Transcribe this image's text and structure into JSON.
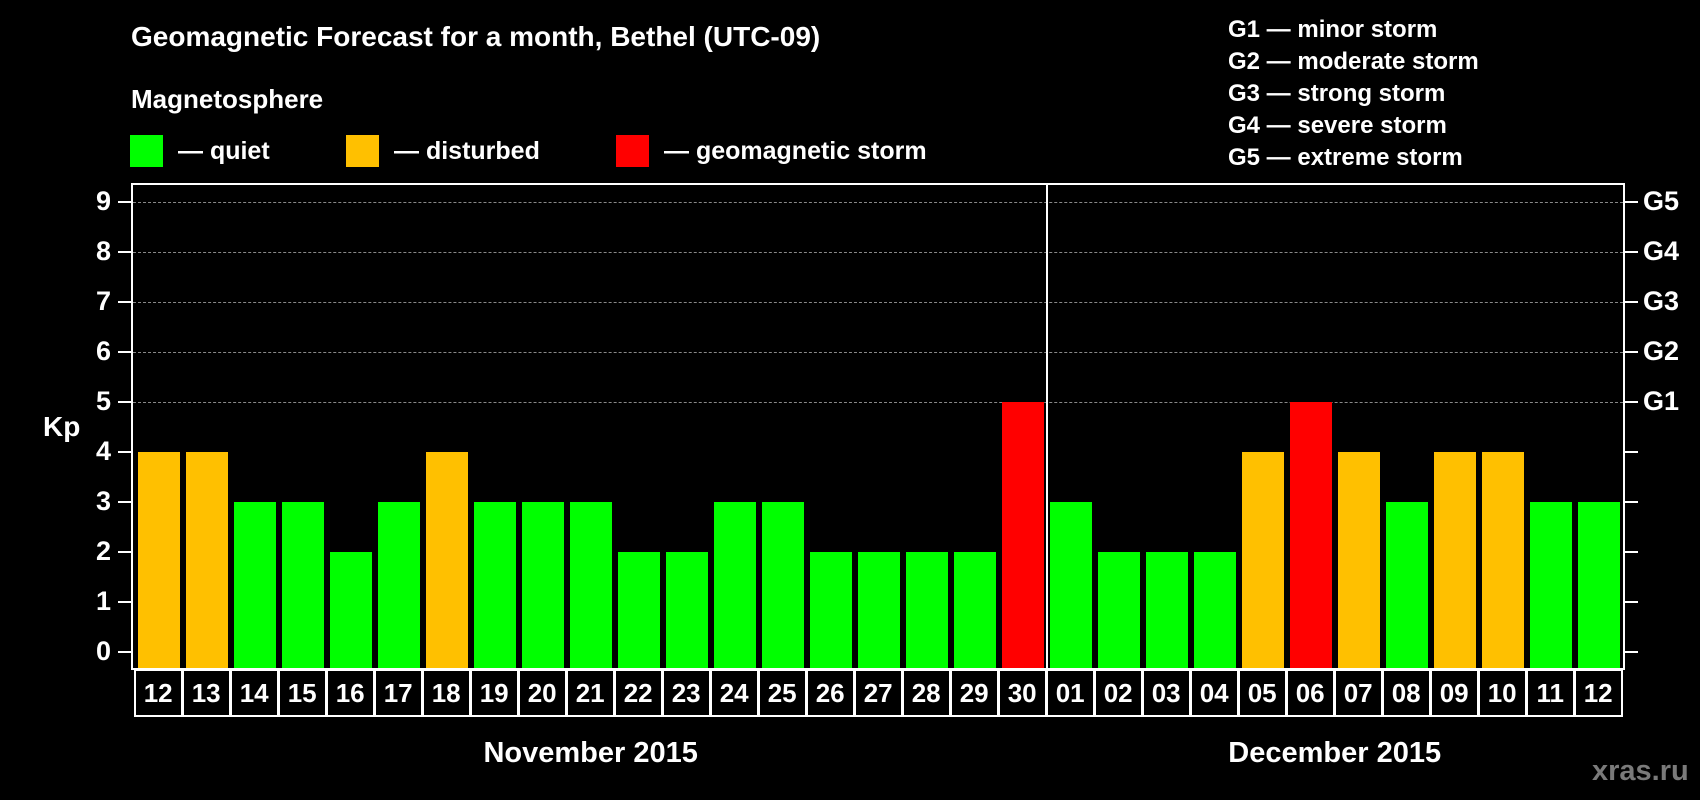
{
  "header": {
    "title": "Geomagnetic Forecast for a month, Bethel (UTC-09)",
    "subtitle": "Magnetosphere"
  },
  "legend": [
    {
      "label": "— quiet",
      "color": "#00FF00"
    },
    {
      "label": "— disturbed",
      "color": "#FFC000"
    },
    {
      "label": "— geomagnetic storm",
      "color": "#FF0000"
    }
  ],
  "storm_scale": [
    "G1 — minor storm",
    "G2 — moderate storm",
    "G3 — strong storm",
    "G4 — severe storm",
    "G5 — extreme storm"
  ],
  "watermark": "xras.ru",
  "chart_data": {
    "type": "bar",
    "title": "Geomagnetic Forecast for a month, Bethel (UTC-09)",
    "subtitle": "Magnetosphere",
    "ylabel": "Kp",
    "xlabel": "",
    "ylim": [
      0,
      9
    ],
    "yticks": [
      0,
      1,
      2,
      3,
      4,
      5,
      6,
      7,
      8,
      9
    ],
    "right_axis_labels": [
      {
        "value": 5,
        "label": "G1"
      },
      {
        "value": 6,
        "label": "G2"
      },
      {
        "value": 7,
        "label": "G3"
      },
      {
        "value": 8,
        "label": "G4"
      },
      {
        "value": 9,
        "label": "G5"
      }
    ],
    "grid": "horizontal dashed at 5-9",
    "months": [
      {
        "label": "November 2015",
        "start_index": 0,
        "end_index": 18
      },
      {
        "label": "December 2015",
        "start_index": 19,
        "end_index": 30
      }
    ],
    "categories": [
      "12",
      "13",
      "14",
      "15",
      "16",
      "17",
      "18",
      "19",
      "20",
      "21",
      "22",
      "23",
      "24",
      "25",
      "26",
      "27",
      "28",
      "29",
      "30",
      "01",
      "02",
      "03",
      "04",
      "05",
      "06",
      "07",
      "08",
      "09",
      "10",
      "11",
      "12"
    ],
    "values": [
      4,
      4,
      3,
      3,
      2,
      3,
      4,
      3,
      3,
      3,
      2,
      2,
      3,
      3,
      2,
      2,
      2,
      2,
      5,
      3,
      2,
      2,
      2,
      4,
      5,
      4,
      3,
      4,
      4,
      3,
      3
    ],
    "status": [
      "disturbed",
      "disturbed",
      "quiet",
      "quiet",
      "quiet",
      "quiet",
      "disturbed",
      "quiet",
      "quiet",
      "quiet",
      "quiet",
      "quiet",
      "quiet",
      "quiet",
      "quiet",
      "quiet",
      "quiet",
      "quiet",
      "storm",
      "quiet",
      "quiet",
      "quiet",
      "quiet",
      "disturbed",
      "storm",
      "disturbed",
      "quiet",
      "disturbed",
      "disturbed",
      "quiet",
      "quiet"
    ],
    "legend": [
      {
        "label": "quiet",
        "color": "#00FF00"
      },
      {
        "label": "disturbed",
        "color": "#FFC000"
      },
      {
        "label": "geomagnetic storm",
        "color": "#FF0000"
      }
    ]
  }
}
